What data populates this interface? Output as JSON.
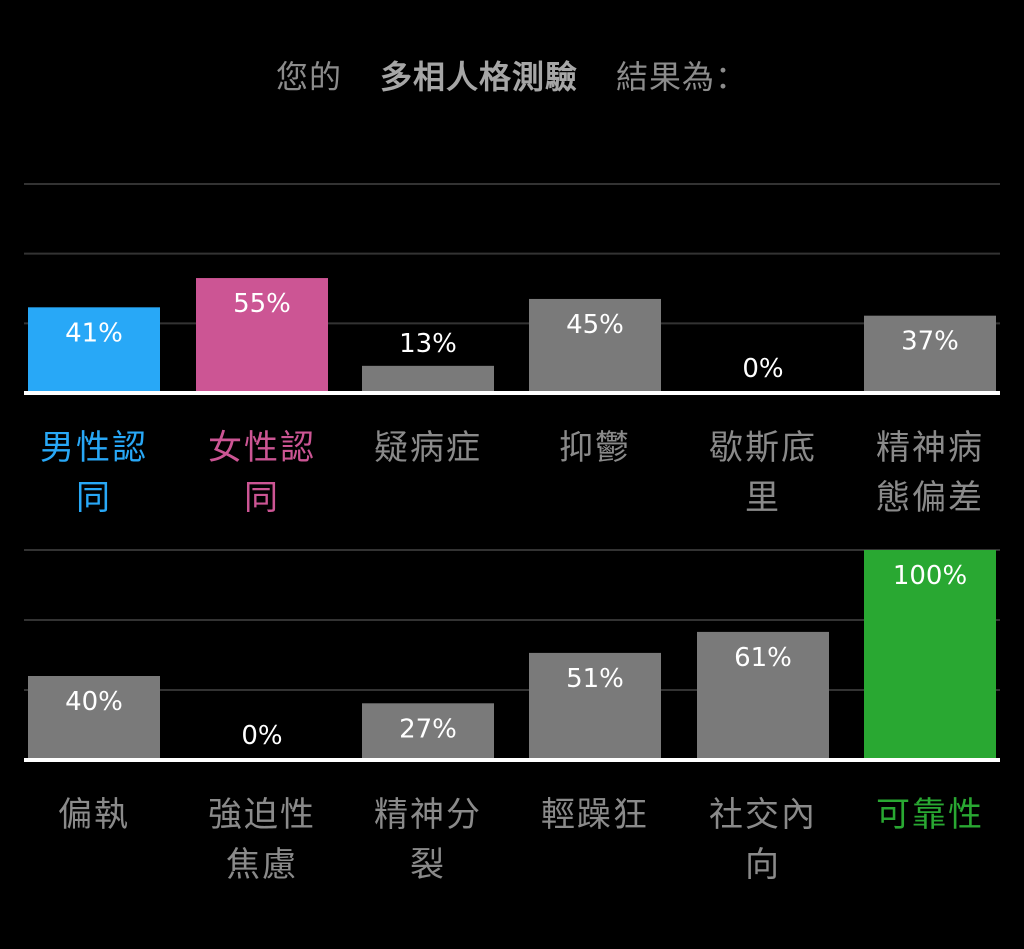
{
  "header": {
    "prefix": "您的",
    "test_name": "多相人格測驗",
    "suffix": "結果為："
  },
  "colors": {
    "default_bar": "#7a7a7a",
    "male": "#28a8f7",
    "female": "#cc5594",
    "reliability": "#29a832",
    "default_label": "#8a8a8a"
  },
  "chart_data": [
    {
      "type": "bar",
      "ylim": [
        0,
        100
      ],
      "grid": true,
      "categories": [
        {
          "label": [
            "男性認",
            "同"
          ],
          "value": 41,
          "display": "41%",
          "color": "#28a8f7"
        },
        {
          "label": [
            "女性認",
            "同"
          ],
          "value": 55,
          "display": "55%",
          "color": "#cc5594"
        },
        {
          "label": [
            "疑病症"
          ],
          "value": 13,
          "display": "13%",
          "color": "#7a7a7a"
        },
        {
          "label": [
            "抑鬱"
          ],
          "value": 45,
          "display": "45%",
          "color": "#7a7a7a"
        },
        {
          "label": [
            "歇斯底",
            "里"
          ],
          "value": 0,
          "display": "0%",
          "color": "#7a7a7a"
        },
        {
          "label": [
            "精神病",
            "態偏差"
          ],
          "value": 37,
          "display": "37%",
          "color": "#7a7a7a"
        }
      ]
    },
    {
      "type": "bar",
      "ylim": [
        0,
        100
      ],
      "grid": true,
      "categories": [
        {
          "label": [
            "偏執"
          ],
          "value": 40,
          "display": "40%",
          "color": "#7a7a7a"
        },
        {
          "label": [
            "強迫性",
            "焦慮"
          ],
          "value": 0,
          "display": "0%",
          "color": "#7a7a7a"
        },
        {
          "label": [
            "精神分",
            "裂"
          ],
          "value": 27,
          "display": "27%",
          "color": "#7a7a7a"
        },
        {
          "label": [
            "輕躁狂"
          ],
          "value": 51,
          "display": "51%",
          "color": "#7a7a7a"
        },
        {
          "label": [
            "社交內",
            "向"
          ],
          "value": 61,
          "display": "61%",
          "color": "#7a7a7a"
        },
        {
          "label": [
            "可靠性"
          ],
          "value": 100,
          "display": "100%",
          "color": "#29a832"
        }
      ]
    }
  ]
}
